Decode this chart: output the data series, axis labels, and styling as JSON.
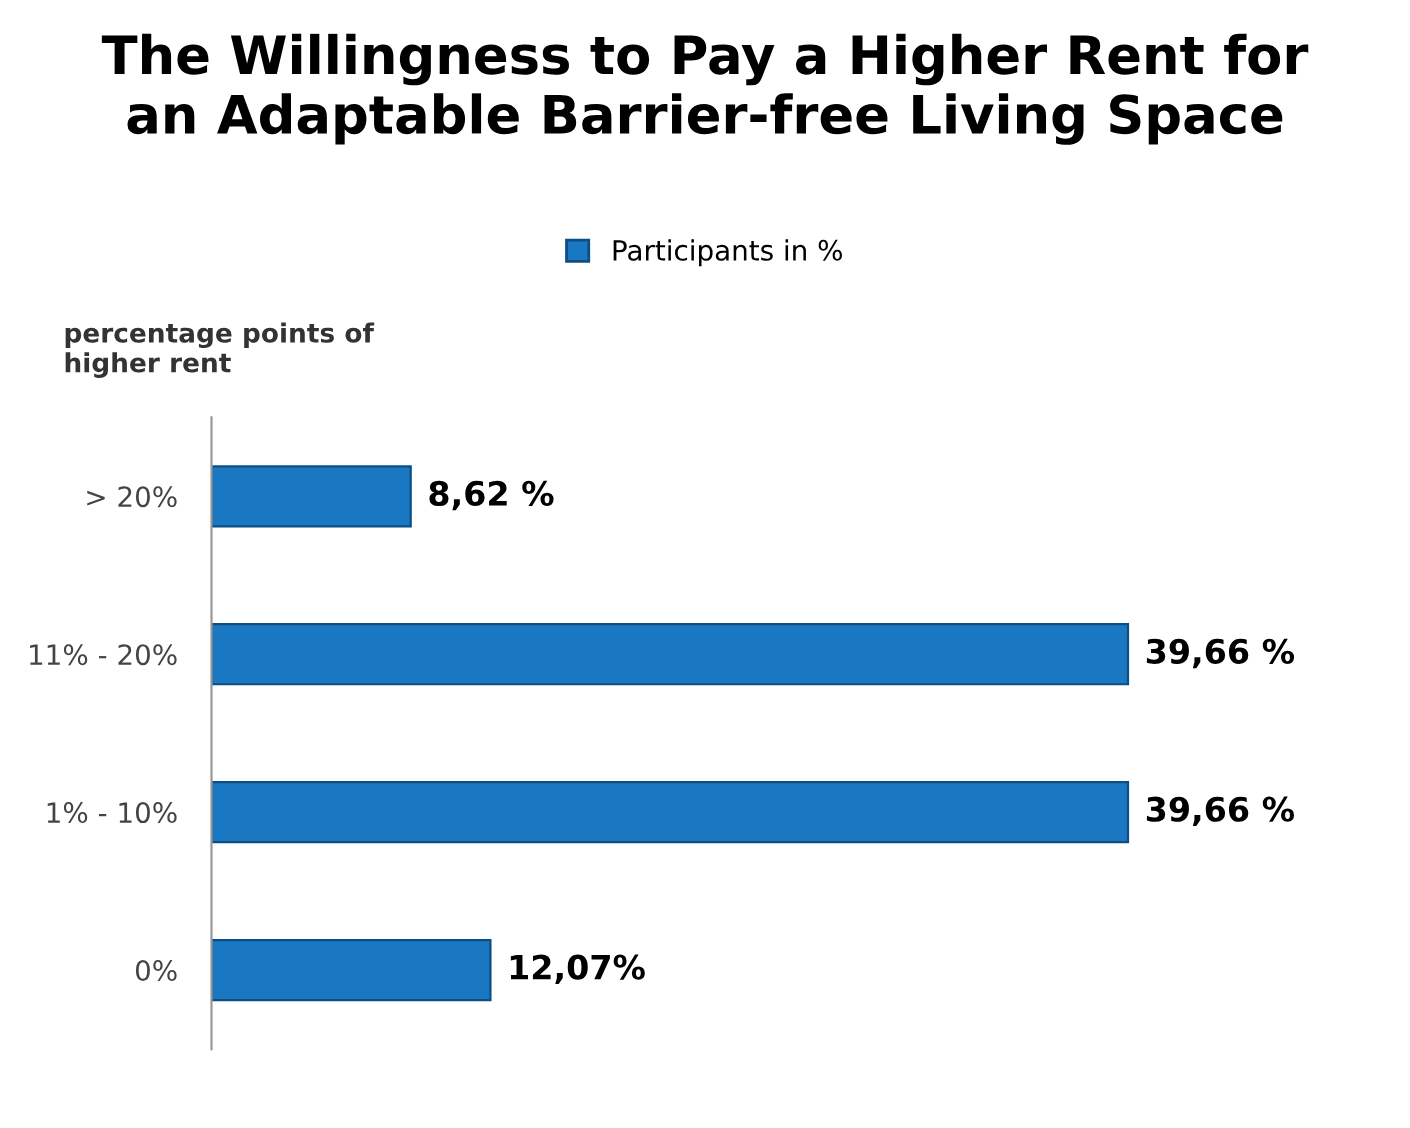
{
  "chart_data": {
    "type": "bar",
    "orientation": "horizontal",
    "title": "The Willingness to Pay a Higher Rent for\nan Adaptable Barrier-free Living Space",
    "ylabel": "percentage points of\nhigher rent",
    "categories": [
      "> 20%",
      "11% - 20%",
      "1% - 10%",
      "0%"
    ],
    "series": [
      {
        "name": "Participants in %",
        "color": "#1a78c2",
        "values": [
          8.62,
          39.66,
          39.66,
          12.07
        ],
        "value_labels": [
          "8,62 %",
          "39,66 %",
          "39,66 %",
          "12,07%"
        ]
      }
    ],
    "legend": "top",
    "grid": false
  }
}
